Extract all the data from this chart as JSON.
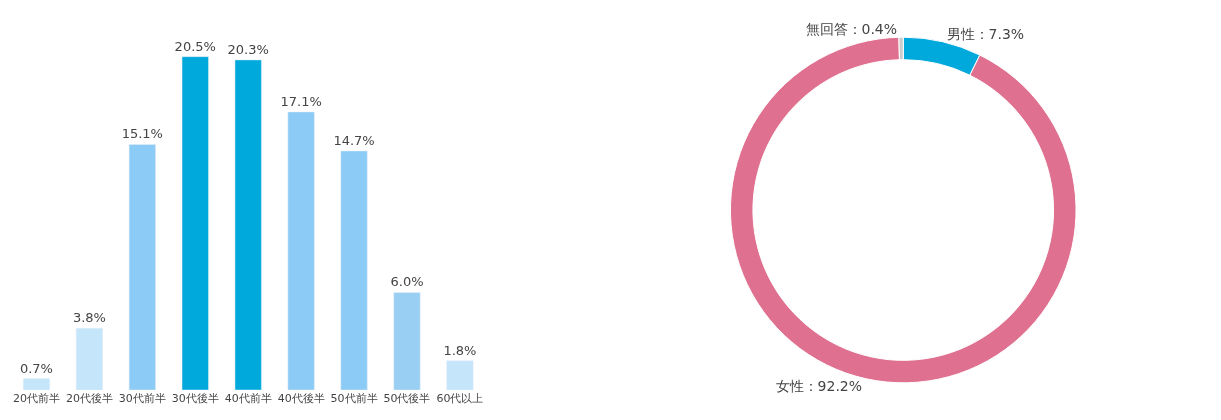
{
  "chart_data": [
    {
      "type": "bar",
      "categories": [
        "20代前半",
        "20代後半",
        "30代前半",
        "30代後半",
        "40代前半",
        "40代後半",
        "50代前半",
        "50代後半",
        "60代以上"
      ],
      "values": [
        0.7,
        3.8,
        15.1,
        20.5,
        20.3,
        17.1,
        14.7,
        6.0,
        1.8
      ],
      "value_labels": [
        "0.7%",
        "3.8%",
        "15.1%",
        "20.5%",
        "20.3%",
        "17.1%",
        "14.7%",
        "6.0%",
        "1.8%"
      ],
      "colors": [
        "#c5e5fb",
        "#c5e5fb",
        "#8ccbf5",
        "#00a9dc",
        "#00a9dc",
        "#8ccbf5",
        "#8ccbf5",
        "#99cff3",
        "#c5e5fb"
      ]
    },
    {
      "type": "donut",
      "categories": [
        "男性",
        "女性",
        "無回答"
      ],
      "values": [
        7.3,
        92.2,
        0.4
      ],
      "value_labels": [
        "7.3%",
        "92.2%",
        "0.4%"
      ],
      "colors": [
        "#00a9dc",
        "#df7090",
        "#cccccc"
      ]
    }
  ]
}
